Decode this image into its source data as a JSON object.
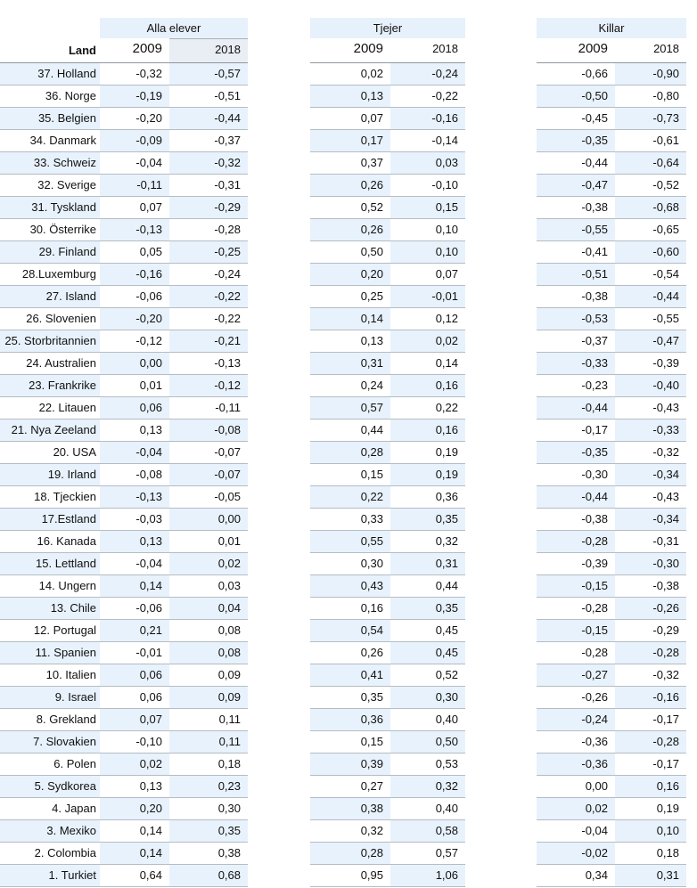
{
  "colors": {
    "band_background": "#e7f1fb",
    "cell_highlight": "#e8f2fc",
    "header_2018_shaded": "#e9edf4",
    "row_border": "#b5bcc3",
    "header_border": "#8f969d",
    "text": "#111111"
  },
  "chart_data": {
    "type": "table",
    "title": "",
    "land_header": "Land",
    "column_groups": [
      "Alla elever",
      "Tjejer",
      "Killar"
    ],
    "years": [
      "2009",
      "2018"
    ],
    "columns": [
      "Land",
      "Alla elever 2009",
      "Alla elever 2018",
      "Tjejer 2009",
      "Tjejer 2018",
      "Killar 2009",
      "Killar 2018"
    ],
    "rows": [
      {
        "land": "37. Holland",
        "values": [
          "-0,32",
          "-0,57",
          "0,02",
          "-0,24",
          "-0,66",
          "-0,90"
        ]
      },
      {
        "land": "36. Norge",
        "values": [
          "-0,19",
          "-0,51",
          "0,13",
          "-0,22",
          "-0,50",
          "-0,80"
        ]
      },
      {
        "land": "35. Belgien",
        "values": [
          "-0,20",
          "-0,44",
          "0,07",
          "-0,16",
          "-0,45",
          "-0,73"
        ]
      },
      {
        "land": "34. Danmark",
        "values": [
          "-0,09",
          "-0,37",
          "0,17",
          "-0,14",
          "-0,35",
          "-0,61"
        ]
      },
      {
        "land": "33. Schweiz",
        "values": [
          "-0,04",
          "-0,32",
          "0,37",
          "0,03",
          "-0,44",
          "-0,64"
        ]
      },
      {
        "land": "32. Sverige",
        "values": [
          "-0,11",
          "-0,31",
          "0,26",
          "-0,10",
          "-0,47",
          "-0,52"
        ]
      },
      {
        "land": "31. Tyskland",
        "values": [
          "0,07",
          "-0,29",
          "0,52",
          "0,15",
          "-0,38",
          "-0,68"
        ]
      },
      {
        "land": "30. Österrike",
        "values": [
          "-0,13",
          "-0,28",
          "0,26",
          "0,10",
          "-0,55",
          "-0,65"
        ]
      },
      {
        "land": "29. Finland",
        "values": [
          "0,05",
          "-0,25",
          "0,50",
          "0,10",
          "-0,41",
          "-0,60"
        ]
      },
      {
        "land": "28.Luxemburg",
        "values": [
          "-0,16",
          "-0,24",
          "0,20",
          "0,07",
          "-0,51",
          "-0,54"
        ]
      },
      {
        "land": "27. Island",
        "values": [
          "-0,06",
          "-0,22",
          "0,25",
          "-0,01",
          "-0,38",
          "-0,44"
        ]
      },
      {
        "land": "26. Slovenien",
        "values": [
          "-0,20",
          "-0,22",
          "0,14",
          "0,12",
          "-0,53",
          "-0,55"
        ]
      },
      {
        "land": "25. Storbritannien",
        "values": [
          "-0,12",
          "-0,21",
          "0,13",
          "0,02",
          "-0,37",
          "-0,47"
        ]
      },
      {
        "land": "24. Australien",
        "values": [
          "0,00",
          "-0,13",
          "0,31",
          "0,14",
          "-0,33",
          "-0,39"
        ]
      },
      {
        "land": "23. Frankrike",
        "values": [
          "0,01",
          "-0,12",
          "0,24",
          "0,16",
          "-0,23",
          "-0,40"
        ]
      },
      {
        "land": "22. Litauen",
        "values": [
          "0,06",
          "-0,11",
          "0,57",
          "0,22",
          "-0,44",
          "-0,43"
        ]
      },
      {
        "land": "21. Nya Zeeland",
        "values": [
          "0,13",
          "-0,08",
          "0,44",
          "0,16",
          "-0,17",
          "-0,33"
        ]
      },
      {
        "land": "20. USA",
        "values": [
          "-0,04",
          "-0,07",
          "0,28",
          "0,19",
          "-0,35",
          "-0,32"
        ]
      },
      {
        "land": "19. Irland",
        "values": [
          "-0,08",
          "-0,07",
          "0,15",
          "0,19",
          "-0,30",
          "-0,34"
        ]
      },
      {
        "land": "18. Tjeckien",
        "values": [
          "-0,13",
          "-0,05",
          "0,22",
          "0,36",
          "-0,44",
          "-0,43"
        ]
      },
      {
        "land": "17.Estland",
        "values": [
          "-0,03",
          "0,00",
          "0,33",
          "0,35",
          "-0,38",
          "-0,34"
        ]
      },
      {
        "land": "16. Kanada",
        "values": [
          "0,13",
          "0,01",
          "0,55",
          "0,32",
          "-0,28",
          "-0,31"
        ]
      },
      {
        "land": "15. Lettland",
        "values": [
          "-0,04",
          "0,02",
          "0,30",
          "0,31",
          "-0,39",
          "-0,30"
        ]
      },
      {
        "land": "14. Ungern",
        "values": [
          "0,14",
          "0,03",
          "0,43",
          "0,44",
          "-0,15",
          "-0,38"
        ]
      },
      {
        "land": "13. Chile",
        "values": [
          "-0,06",
          "0,04",
          "0,16",
          "0,35",
          "-0,28",
          "-0,26"
        ]
      },
      {
        "land": "12. Portugal",
        "values": [
          "0,21",
          "0,08",
          "0,54",
          "0,45",
          "-0,15",
          "-0,29"
        ]
      },
      {
        "land": "11. Spanien",
        "values": [
          "-0,01",
          "0,08",
          "0,26",
          "0,45",
          "-0,28",
          "-0,28"
        ]
      },
      {
        "land": "10. Italien",
        "values": [
          "0,06",
          "0,09",
          "0,41",
          "0,52",
          "-0,27",
          "-0,32"
        ]
      },
      {
        "land": "9. Israel",
        "values": [
          "0,06",
          "0,09",
          "0,35",
          "0,30",
          "-0,26",
          "-0,16"
        ]
      },
      {
        "land": "8. Grekland",
        "values": [
          "0,07",
          "0,11",
          "0,36",
          "0,40",
          "-0,24",
          "-0,17"
        ]
      },
      {
        "land": "7. Slovakien",
        "values": [
          "-0,10",
          "0,11",
          "0,15",
          "0,50",
          "-0,36",
          "-0,28"
        ]
      },
      {
        "land": "6. Polen",
        "values": [
          "0,02",
          "0,18",
          "0,39",
          "0,53",
          "-0,36",
          "-0,17"
        ]
      },
      {
        "land": "5. Sydkorea",
        "values": [
          "0,13",
          "0,23",
          "0,27",
          "0,32",
          "0,00",
          "0,16"
        ]
      },
      {
        "land": "4. Japan",
        "values": [
          "0,20",
          "0,30",
          "0,38",
          "0,40",
          "0,02",
          "0,19"
        ]
      },
      {
        "land": "3. Mexiko",
        "values": [
          "0,14",
          "0,35",
          "0,32",
          "0,58",
          "-0,04",
          "0,10"
        ]
      },
      {
        "land": "2. Colombia",
        "values": [
          "0,14",
          "0,38",
          "0,28",
          "0,57",
          "-0,02",
          "0,18"
        ]
      },
      {
        "land": "1. Turkiet",
        "values": [
          "0,64",
          "0,68",
          "0,95",
          "1,06",
          "0,34",
          "0,31"
        ]
      }
    ]
  }
}
